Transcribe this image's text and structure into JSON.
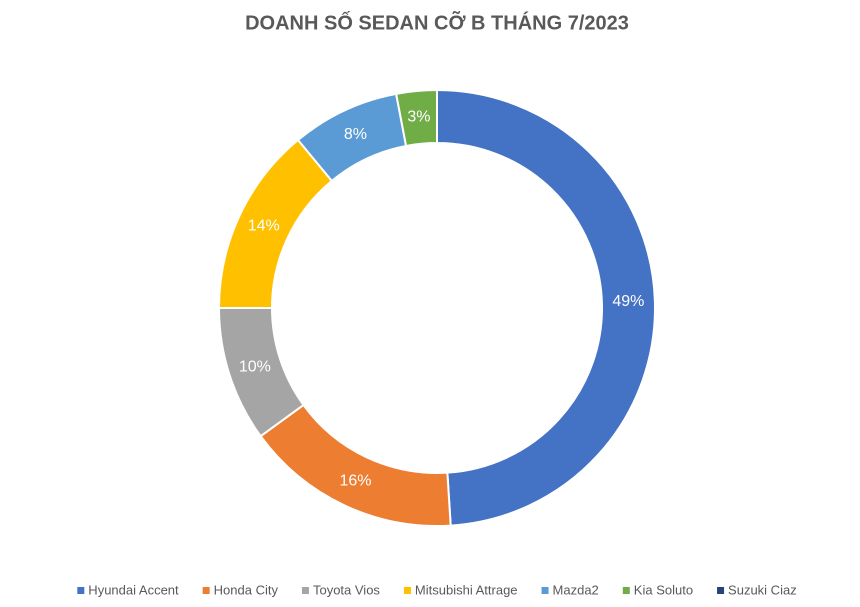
{
  "chart_data": {
    "type": "donut",
    "title": "DOANH SỐ SEDAN CỠ B THÁNG 7/2023",
    "categories": [
      "Hyundai Accent",
      "Honda City",
      "Toyota Vios",
      "Mitsubishi Attrage",
      "Mazda2",
      "Kia Soluto",
      "Suzuki Ciaz"
    ],
    "values": [
      49,
      16,
      10,
      14,
      8,
      3,
      0
    ],
    "value_labels": [
      "49%",
      "16%",
      "10%",
      "14%",
      "8%",
      "3%",
      null
    ],
    "colors": [
      "#4472c4",
      "#ed7d31",
      "#a5a5a5",
      "#ffc000",
      "#5b9bd5",
      "#70ad47",
      "#264478"
    ],
    "legend": "bottom"
  }
}
